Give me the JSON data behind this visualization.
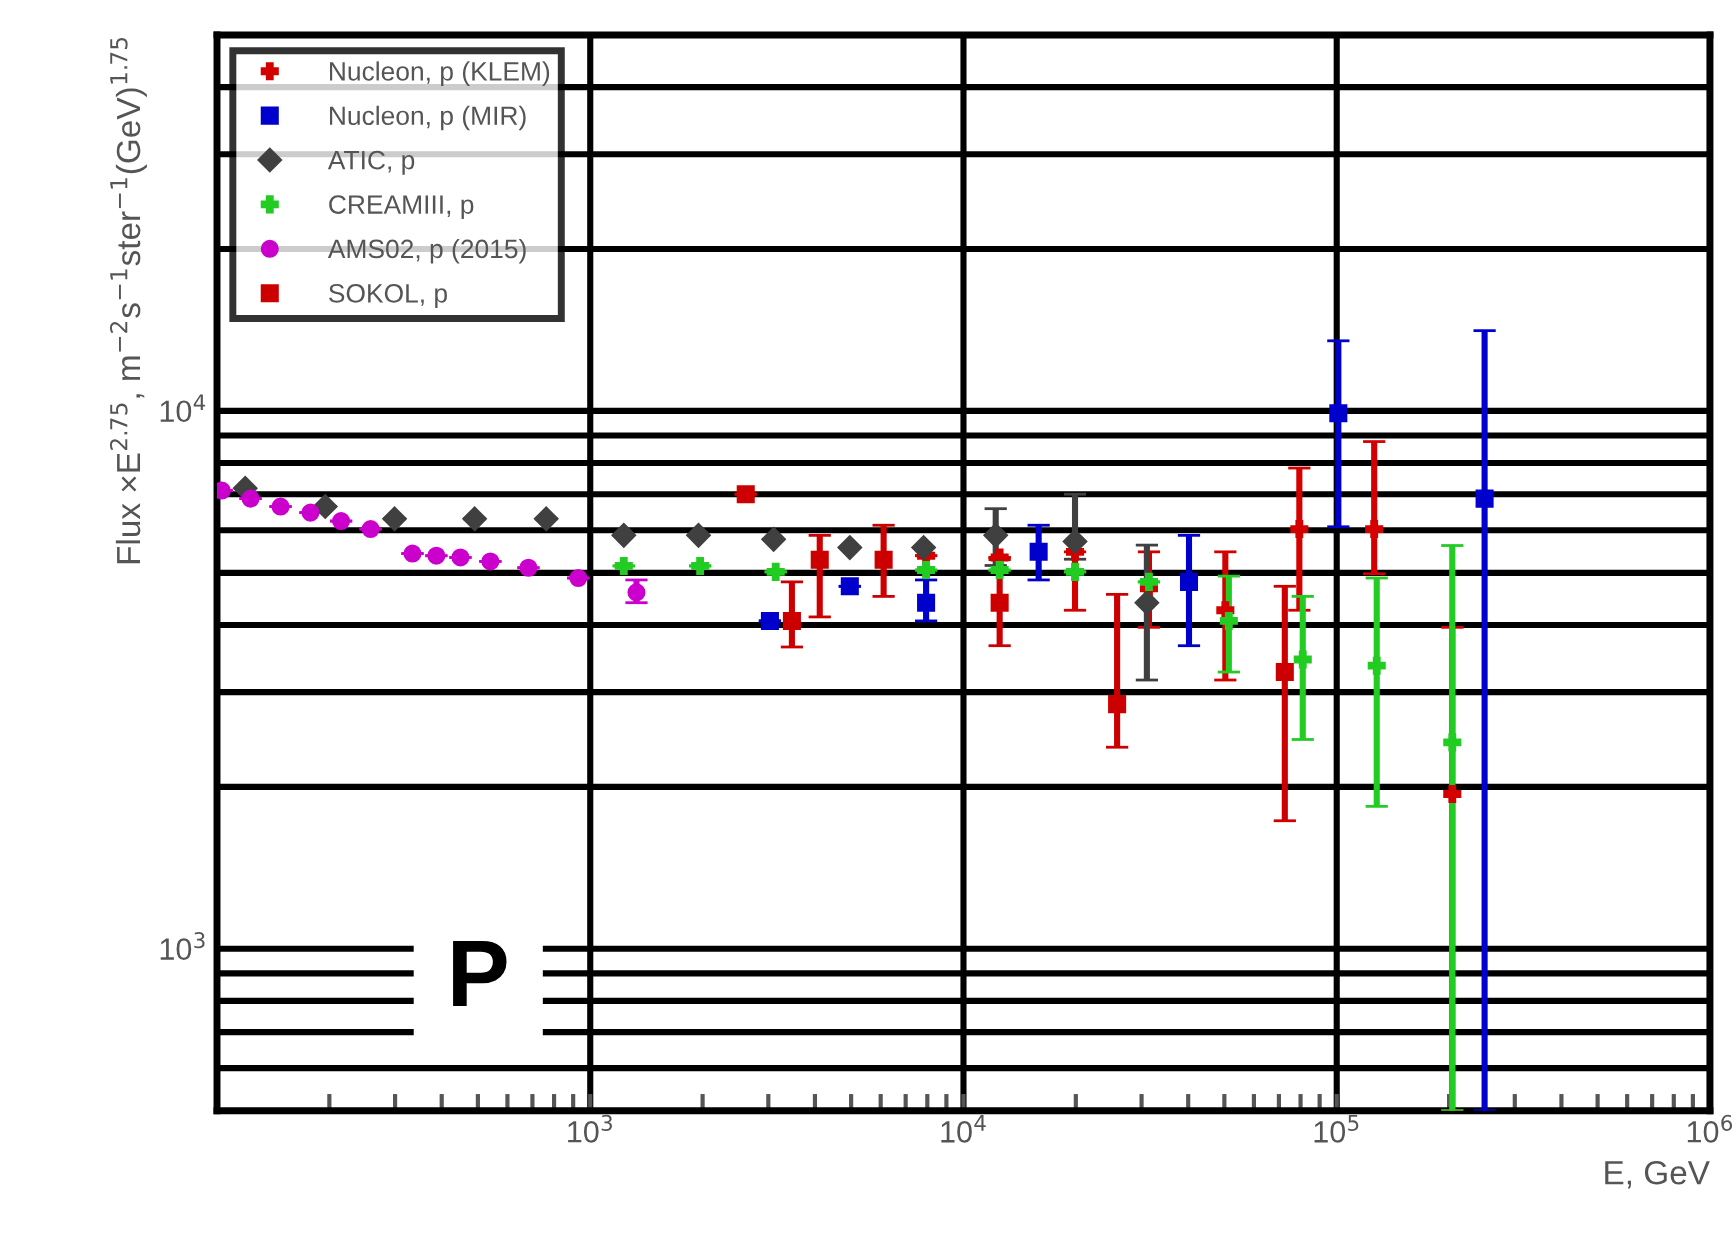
{
  "chart_data": {
    "type": "scatter",
    "xlabel": "E, GeV",
    "ylabel": "Flux ×E$^{2.75}$, m$^{−2}$s$^{−1}$ster$^{−1}$(GeV)$^{1.75}$",
    "annotations": [
      "P"
    ],
    "log": "xy",
    "xlim": [
      100,
      1000000
    ],
    "ylim": [
      500,
      50000
    ],
    "xticks": [
      {
        "value": 200,
        "label": null
      },
      {
        "value": 300,
        "label": null
      },
      {
        "value": 400,
        "label": null
      },
      {
        "value": 500,
        "label": null
      },
      {
        "value": 600,
        "label": null
      },
      {
        "value": 700,
        "label": null
      },
      {
        "value": 800,
        "label": null
      },
      {
        "value": 900,
        "label": null
      },
      {
        "value": 1000,
        "label": "10$^{3}$"
      },
      {
        "value": 2000,
        "label": null
      },
      {
        "value": 3000,
        "label": null
      },
      {
        "value": 4000,
        "label": null
      },
      {
        "value": 5000,
        "label": null
      },
      {
        "value": 6000,
        "label": null
      },
      {
        "value": 7000,
        "label": null
      },
      {
        "value": 8000,
        "label": null
      },
      {
        "value": 9000,
        "label": null
      },
      {
        "value": 10000,
        "label": "10$^{4}$"
      },
      {
        "value": 20000,
        "label": null
      },
      {
        "value": 30000,
        "label": null
      },
      {
        "value": 40000,
        "label": null
      },
      {
        "value": 50000,
        "label": null
      },
      {
        "value": 60000,
        "label": null
      },
      {
        "value": 70000,
        "label": null
      },
      {
        "value": 80000,
        "label": null
      },
      {
        "value": 90000,
        "label": null
      },
      {
        "value": 100000,
        "label": "10$^{5}$"
      },
      {
        "value": 200000,
        "label": null
      },
      {
        "value": 300000,
        "label": null
      },
      {
        "value": 400000,
        "label": null
      },
      {
        "value": 500000,
        "label": null
      },
      {
        "value": 600000,
        "label": null
      },
      {
        "value": 700000,
        "label": null
      },
      {
        "value": 800000,
        "label": null
      },
      {
        "value": 900000,
        "label": null
      },
      {
        "value": 1000000,
        "label": "10$^{6}$"
      }
    ],
    "yticks": [
      {
        "value": 600,
        "label": null
      },
      {
        "value": 700,
        "label": null
      },
      {
        "value": 800,
        "label": null
      },
      {
        "value": 900,
        "label": null
      },
      {
        "value": 1000,
        "label": "10$^{3}$"
      },
      {
        "value": 2000,
        "label": null
      },
      {
        "value": 3000,
        "label": null
      },
      {
        "value": 4000,
        "label": null
      },
      {
        "value": 5000,
        "label": null
      },
      {
        "value": 6000,
        "label": null
      },
      {
        "value": 7000,
        "label": null
      },
      {
        "value": 8000,
        "label": null
      },
      {
        "value": 9000,
        "label": null
      },
      {
        "value": 10000,
        "label": "10$^{4}$"
      },
      {
        "value": 20000,
        "label": null
      },
      {
        "value": 30000,
        "label": null
      },
      {
        "value": 40000,
        "label": null
      }
    ],
    "grid": true,
    "legend": "top left",
    "series": [
      {
        "name": "Nucleon, p (KLEM)",
        "color": "#d40000",
        "marker": "cross",
        "x": [
          7940,
          12500,
          19900,
          31400,
          50300,
          79400,
          126000,
          204000
        ],
        "values": [
          5380,
          5340,
          5470,
          4680,
          4260,
          6030,
          6030,
          1940
        ],
        "errors": [
          null,
          null,
          [
            4260,
            5470
          ],
          [
            3960,
            5470
          ],
          [
            3160,
            5470
          ],
          [
            4260,
            7830
          ],
          [
            4980,
            8770
          ],
          [
            500,
            3960
          ]
        ]
      },
      {
        "name": "Nucleon, p (MIR)",
        "color": "#0000cc",
        "marker": "square",
        "x": [
          3030,
          4960,
          7940,
          15900,
          40200,
          101000,
          249000
        ],
        "values": [
          4070,
          4720,
          4400,
          5470,
          4810,
          9900,
          6870
        ],
        "errors": [
          null,
          null,
          [
            4070,
            4850
          ],
          [
            4850,
            6130
          ],
          [
            3660,
            5870
          ],
          [
            6090,
            13500
          ],
          [
            500,
            14100
          ]
        ]
      },
      {
        "name": "ATIC, p",
        "color": "#404040",
        "marker": "diamond",
        "x": [
          119,
          195,
          299,
          490,
          762,
          1230,
          1950,
          3100,
          4960,
          7820,
          12200,
          19900,
          31000
        ],
        "values": [
          7180,
          6640,
          6300,
          6300,
          6300,
          5870,
          5870,
          5770,
          5570,
          5570,
          5870,
          5720,
          4400
        ],
        "errors": [
          null,
          null,
          null,
          null,
          null,
          null,
          null,
          null,
          null,
          null,
          [
            5160,
            6580
          ],
          [
            5300,
            7000
          ],
          [
            3160,
            5630
          ]
        ]
      },
      {
        "name": "CREAMIII, p",
        "color": "#22cc22",
        "marker": "cross",
        "x": [
          1230,
          1970,
          3140,
          7940,
          12500,
          19900,
          31400,
          51400,
          81100,
          128000,
          204000
        ],
        "values": [
          5150,
          5150,
          5020,
          5060,
          5060,
          5020,
          4810,
          4070,
          3450,
          3360,
          2420
        ],
        "errors": [
          null,
          null,
          null,
          null,
          null,
          null,
          null,
          [
            3270,
            4930
          ],
          [
            2450,
            4520
          ],
          [
            1840,
            4890
          ],
          [
            500,
            5620
          ]
        ]
      },
      {
        "name": "AMS02, p (2015)",
        "color": "#cc00cc",
        "marker": "circle",
        "x": [
          103,
          123,
          148,
          178,
          215,
          258,
          334,
          387,
          449,
          540,
          683,
          929,
          1330
        ],
        "values": [
          7110,
          6870,
          6640,
          6470,
          6240,
          6030,
          5430,
          5380,
          5340,
          5250,
          5110,
          4890,
          4600
        ],
        "errors": [
          null,
          null,
          null,
          null,
          null,
          null,
          null,
          null,
          null,
          null,
          null,
          null,
          [
            4400,
            4850
          ]
        ]
      },
      {
        "name": "SOKOL, p",
        "color": "#cc0000",
        "marker": "square",
        "x": [
          2610,
          3470,
          4120,
          6110,
          12500,
          25800,
          72600
        ],
        "values": [
          7000,
          4070,
          5290,
          5290,
          4400,
          2850,
          3270
        ],
        "errors": [
          null,
          [
            3640,
            4810
          ],
          [
            4140,
            5870
          ],
          [
            4520,
            6130
          ],
          [
            3660,
            5290
          ],
          [
            2370,
            4560
          ],
          [
            1730,
            4720
          ]
        ]
      }
    ]
  }
}
